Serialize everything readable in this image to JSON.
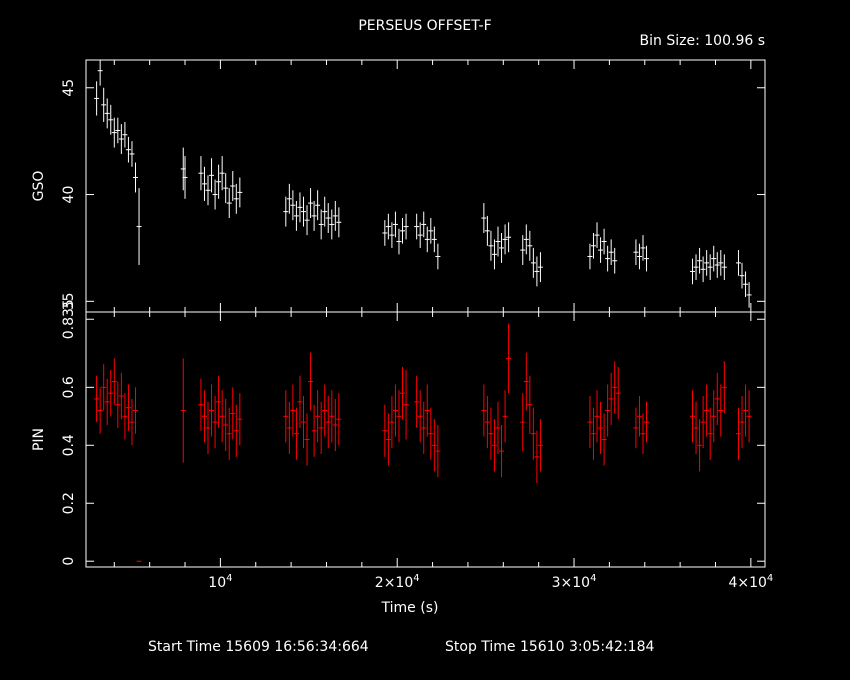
{
  "header": {
    "title": "PERSEUS OFFSET-F",
    "bin_size": "Bin Size: 100.96 s"
  },
  "footer": {
    "start_time": "Start Time 15609 16:56:34:664",
    "stop_time": "Stop Time 15610  3:05:42:184"
  },
  "colors": {
    "axes": "#ffffff",
    "gso_series": "#ffffff",
    "pin_series": "#ff0000",
    "background": "#000000"
  },
  "chart_data": [
    {
      "type": "scatter",
      "panel": "top",
      "ylabel": "GSO",
      "xlim": [
        2400,
        40800
      ],
      "ylim": [
        34.5,
        46.3
      ],
      "y_tick_labels": [
        "35",
        "40",
        "45"
      ],
      "y_ticks": [
        35,
        40,
        45
      ],
      "grid": false,
      "error_bars": true,
      "series": [
        {
          "color": "#ffffff",
          "segments": [
            {
              "x": [
                3000,
                3200,
                3400,
                3600,
                3800,
                4000,
                4200,
                4400,
                4600,
                4800,
                5000,
                5200,
                5400
              ],
              "y": [
                44.5,
                45.8,
                44.2,
                43.8,
                43.5,
                42.9,
                43.0,
                42.6,
                42.8,
                42.1,
                41.9,
                40.8,
                38.5
              ],
              "err": [
                0.8,
                0.7,
                0.8,
                0.7,
                0.7,
                0.7,
                0.6,
                0.7,
                0.6,
                0.6,
                0.6,
                0.7,
                1.8
              ]
            },
            {
              "x": [
                7900,
                8000
              ],
              "y": [
                41.2,
                40.8
              ],
              "err": [
                1.0,
                1.0
              ]
            },
            {
              "x": [
                8900,
                9100,
                9300,
                9500,
                9700,
                9900,
                10100,
                10300,
                10500,
                10700,
                10900,
                11100
              ],
              "y": [
                41.0,
                40.5,
                40.2,
                40.9,
                40.0,
                40.6,
                41.0,
                40.3,
                39.6,
                40.4,
                39.8,
                40.1
              ],
              "err": [
                0.8,
                0.8,
                0.7,
                0.8,
                0.7,
                0.8,
                0.8,
                0.7,
                0.7,
                0.7,
                0.7,
                0.7
              ]
            },
            {
              "x": [
                13700,
                13900,
                14100,
                14300,
                14500,
                14700,
                14900,
                15100,
                15300,
                15500,
                15700,
                15900,
                16100,
                16300,
                16500,
                16700
              ],
              "y": [
                39.2,
                39.8,
                39.5,
                39.0,
                39.4,
                39.2,
                38.8,
                39.6,
                39.0,
                39.5,
                38.6,
                39.2,
                38.9,
                38.6,
                39.0,
                38.7
              ],
              "err": [
                0.7,
                0.7,
                0.7,
                0.7,
                0.7,
                0.7,
                0.7,
                0.7,
                0.7,
                0.7,
                0.7,
                0.7,
                0.7,
                0.7,
                0.7,
                0.7
              ]
            },
            {
              "x": [
                19300,
                19500,
                19700,
                19900,
                20100,
                20300,
                20500
              ],
              "y": [
                38.2,
                38.5,
                38.1,
                38.6,
                37.8,
                38.3,
                38.5
              ],
              "err": [
                0.6,
                0.6,
                0.6,
                0.6,
                0.6,
                0.6,
                0.6
              ]
            },
            {
              "x": [
                21100,
                21300,
                21500,
                21700,
                21900,
                22100,
                22300
              ],
              "y": [
                38.5,
                38.1,
                38.6,
                37.9,
                38.3,
                37.9,
                37.1
              ],
              "err": [
                0.6,
                0.6,
                0.6,
                0.6,
                0.6,
                0.6,
                0.6
              ]
            },
            {
              "x": [
                24900,
                25100,
                25300,
                25500,
                25700,
                25900,
                26100,
                26300
              ],
              "y": [
                38.9,
                38.3,
                37.6,
                37.2,
                37.8,
                37.5,
                37.9,
                38.0
              ],
              "err": [
                0.7,
                0.7,
                0.7,
                0.7,
                0.7,
                0.7,
                0.7,
                0.7
              ]
            },
            {
              "x": [
                27100,
                27300,
                27500,
                27700,
                27900,
                28100
              ],
              "y": [
                37.4,
                37.9,
                37.6,
                36.8,
                36.4,
                36.6
              ],
              "err": [
                0.7,
                0.7,
                0.7,
                0.7,
                0.7,
                0.7
              ]
            },
            {
              "x": [
                30900,
                31100,
                31300,
                31500,
                31700,
                31900,
                32100,
                32300
              ],
              "y": [
                37.1,
                37.6,
                38.1,
                37.4,
                37.8,
                37.0,
                37.3,
                36.9
              ],
              "err": [
                0.6,
                0.6,
                0.6,
                0.6,
                0.6,
                0.6,
                0.6,
                0.6
              ]
            },
            {
              "x": [
                33500,
                33700,
                33900,
                34100
              ],
              "y": [
                37.3,
                37.1,
                37.5,
                37.0
              ],
              "err": [
                0.6,
                0.6,
                0.6,
                0.6
              ]
            },
            {
              "x": [
                36700,
                36900,
                37100,
                37300,
                37500,
                37700,
                37900,
                38100,
                38300,
                38500
              ],
              "y": [
                36.4,
                36.6,
                36.9,
                36.5,
                36.8,
                36.6,
                37.0,
                36.7,
                36.8,
                36.6
              ],
              "err": [
                0.6,
                0.6,
                0.6,
                0.6,
                0.6,
                0.6,
                0.6,
                0.6,
                0.6,
                0.6
              ]
            },
            {
              "x": [
                39300,
                39500,
                39700,
                39900
              ],
              "y": [
                36.8,
                36.2,
                35.8,
                35.3
              ],
              "err": [
                0.6,
                0.6,
                0.6,
                0.6
              ]
            }
          ]
        }
      ]
    },
    {
      "type": "scatter",
      "panel": "bottom",
      "ylabel": "PIN",
      "xlabel": "Time (s)",
      "xlim": [
        2400,
        40800
      ],
      "ylim": [
        -0.02,
        0.86
      ],
      "y_tick_labels": [
        "0",
        "0.2",
        "0.4",
        "0.6",
        "0.835"
      ],
      "y_ticks": [
        0,
        0.2,
        0.4,
        0.6,
        0.835
      ],
      "x_tick_labels": [
        {
          "base": "10",
          "exp": "4"
        },
        {
          "base": "2×10",
          "exp": "4"
        },
        {
          "base": "3×10",
          "exp": "4"
        },
        {
          "base": "4×10",
          "exp": "4"
        }
      ],
      "x_ticks": [
        10000,
        20000,
        30000,
        40000
      ],
      "grid": false,
      "error_bars": true,
      "series": [
        {
          "color": "#ff0000",
          "segments": [
            {
              "x": [
                3000,
                3200,
                3400,
                3600,
                3800,
                4000,
                4200,
                4400,
                4600,
                4800,
                5000,
                5200
              ],
              "y": [
                0.56,
                0.52,
                0.6,
                0.55,
                0.58,
                0.62,
                0.54,
                0.57,
                0.5,
                0.53,
                0.48,
                0.52
              ],
              "err": [
                0.08,
                0.08,
                0.08,
                0.08,
                0.08,
                0.08,
                0.08,
                0.08,
                0.08,
                0.08,
                0.08,
                0.08
              ]
            },
            {
              "x": [
                5400
              ],
              "y": [
                0.0
              ],
              "err": [
                0.0
              ]
            },
            {
              "x": [
                7900
              ],
              "y": [
                0.52
              ],
              "err": [
                0.18
              ]
            },
            {
              "x": [
                8900,
                9100,
                9300,
                9500,
                9700,
                9900,
                10100,
                10300,
                10500,
                10700,
                10900,
                11100
              ],
              "y": [
                0.54,
                0.5,
                0.46,
                0.52,
                0.48,
                0.55,
                0.5,
                0.47,
                0.44,
                0.51,
                0.45,
                0.49
              ],
              "err": [
                0.09,
                0.09,
                0.09,
                0.09,
                0.09,
                0.09,
                0.09,
                0.09,
                0.09,
                0.09,
                0.09,
                0.09
              ]
            },
            {
              "x": [
                13700,
                13900,
                14100,
                14300,
                14500,
                14700,
                14900,
                15100,
                15300,
                15500,
                15700,
                15900,
                16100,
                16300,
                16500,
                16700
              ],
              "y": [
                0.5,
                0.46,
                0.52,
                0.44,
                0.55,
                0.48,
                0.42,
                0.62,
                0.45,
                0.5,
                0.46,
                0.52,
                0.48,
                0.5,
                0.47,
                0.49
              ],
              "err": [
                0.09,
                0.09,
                0.09,
                0.09,
                0.09,
                0.09,
                0.09,
                0.1,
                0.09,
                0.09,
                0.09,
                0.09,
                0.09,
                0.09,
                0.09,
                0.09
              ]
            },
            {
              "x": [
                19300,
                19500,
                19700,
                19900,
                20100,
                20300,
                20500
              ],
              "y": [
                0.45,
                0.42,
                0.48,
                0.52,
                0.5,
                0.58,
                0.54
              ],
              "err": [
                0.09,
                0.09,
                0.09,
                0.09,
                0.09,
                0.09,
                0.12
              ]
            },
            {
              "x": [
                21100,
                21300,
                21500,
                21700,
                21900,
                22100,
                22300
              ],
              "y": [
                0.55,
                0.5,
                0.46,
                0.52,
                0.44,
                0.4,
                0.38
              ],
              "err": [
                0.09,
                0.09,
                0.09,
                0.09,
                0.09,
                0.09,
                0.09
              ]
            },
            {
              "x": [
                24900,
                25100,
                25300,
                25500,
                25700,
                25900,
                26100,
                26300
              ],
              "y": [
                0.52,
                0.48,
                0.44,
                0.4,
                0.46,
                0.38,
                0.5,
                0.7
              ],
              "err": [
                0.09,
                0.09,
                0.09,
                0.09,
                0.09,
                0.09,
                0.09,
                0.12
              ]
            },
            {
              "x": [
                27100,
                27300,
                27500,
                27700,
                27900,
                28100
              ],
              "y": [
                0.48,
                0.62,
                0.54,
                0.44,
                0.36,
                0.4
              ],
              "err": [
                0.1,
                0.1,
                0.1,
                0.09,
                0.09,
                0.09
              ]
            },
            {
              "x": [
                30900,
                31100,
                31300,
                31500,
                31700,
                31900,
                32100,
                32300,
                32500
              ],
              "y": [
                0.48,
                0.44,
                0.5,
                0.46,
                0.42,
                0.52,
                0.56,
                0.6,
                0.58
              ],
              "err": [
                0.09,
                0.09,
                0.09,
                0.09,
                0.09,
                0.09,
                0.09,
                0.09,
                0.09
              ]
            },
            {
              "x": [
                33500,
                33700,
                33900,
                34100
              ],
              "y": [
                0.46,
                0.5,
                0.44,
                0.48
              ],
              "err": [
                0.07,
                0.07,
                0.07,
                0.07
              ]
            },
            {
              "x": [
                36700,
                36900,
                37100,
                37300,
                37500,
                37700,
                37900,
                38100,
                38300,
                38500
              ],
              "y": [
                0.5,
                0.46,
                0.4,
                0.48,
                0.52,
                0.44,
                0.5,
                0.56,
                0.52,
                0.6
              ],
              "err": [
                0.09,
                0.09,
                0.09,
                0.09,
                0.09,
                0.09,
                0.09,
                0.09,
                0.09,
                0.09
              ]
            },
            {
              "x": [
                39300,
                39500,
                39700,
                39900
              ],
              "y": [
                0.44,
                0.48,
                0.52,
                0.5
              ],
              "err": [
                0.09,
                0.09,
                0.09,
                0.09
              ]
            }
          ]
        }
      ]
    }
  ]
}
